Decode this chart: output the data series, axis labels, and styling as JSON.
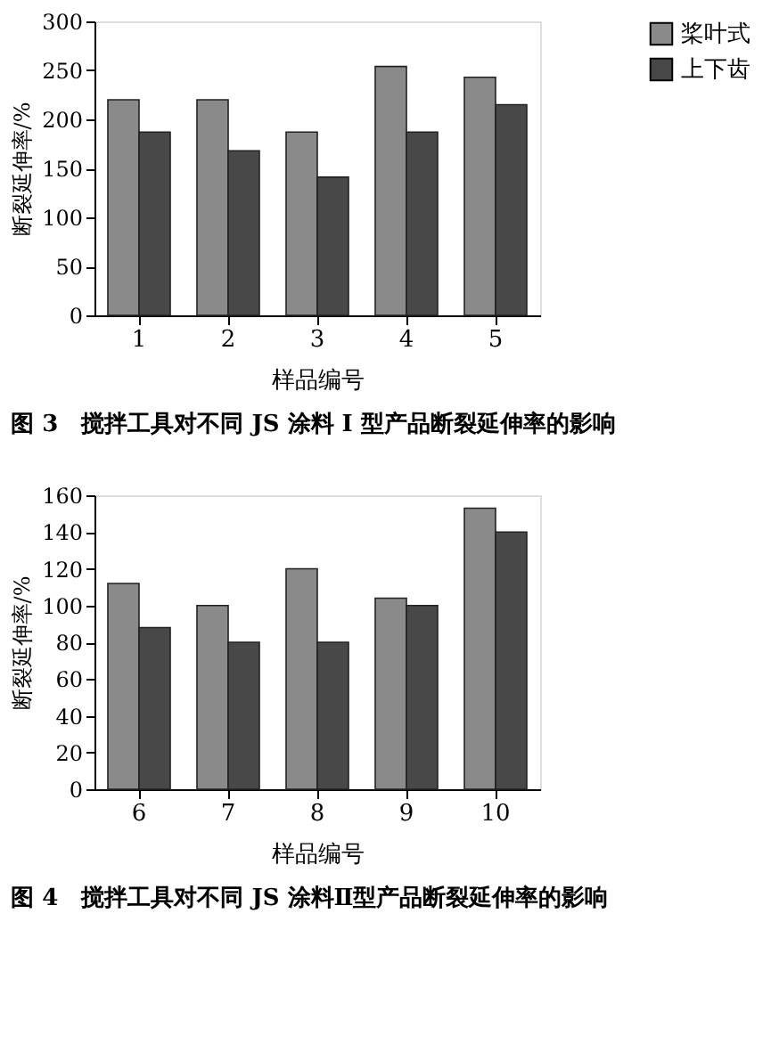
{
  "chart_data": [
    {
      "type": "bar",
      "title": "图 3　搅拌工具对不同 JS 涂料 I 型产品断裂延伸率的影响",
      "xlabel": "样品编号",
      "ylabel": "断裂延伸率/%",
      "categories": [
        "1",
        "2",
        "3",
        "4",
        "5"
      ],
      "series": [
        {
          "name": "桨叶式",
          "color": "#8a8a8a",
          "values": [
            220,
            220,
            187,
            254,
            243
          ]
        },
        {
          "name": "上下齿",
          "color": "#484848",
          "values": [
            187,
            168,
            141,
            187,
            215
          ]
        }
      ],
      "ylim": [
        0,
        300
      ],
      "yticks": [
        0,
        50,
        100,
        150,
        200,
        250,
        300
      ],
      "grid": false,
      "legend": "right"
    },
    {
      "type": "bar",
      "title": "图 4　搅拌工具对不同 JS 涂料Ⅱ型产品断裂延伸率的影响",
      "xlabel": "样品编号",
      "ylabel": "断裂延伸率/%",
      "categories": [
        "6",
        "7",
        "8",
        "9",
        "10"
      ],
      "series": [
        {
          "name": "桨叶式",
          "color": "#8a8a8a",
          "values": [
            112,
            100,
            120,
            104,
            153
          ]
        },
        {
          "name": "上下齿",
          "color": "#484848",
          "values": [
            88,
            80,
            80,
            100,
            140
          ]
        }
      ],
      "ylim": [
        0,
        160
      ],
      "yticks": [
        0,
        20,
        40,
        60,
        80,
        100,
        120,
        140,
        160
      ],
      "grid": false,
      "legend": "right"
    }
  ]
}
